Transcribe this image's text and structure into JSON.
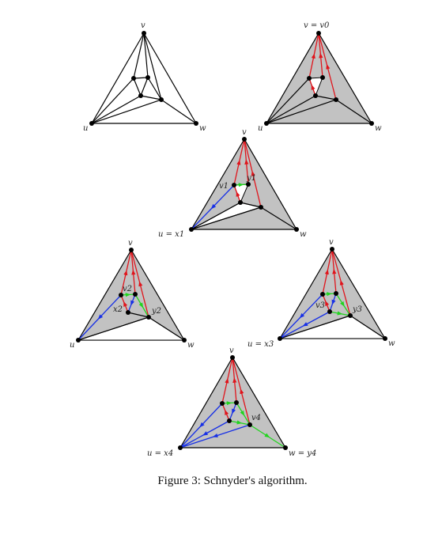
{
  "caption": "Figure 3: Schnyder's algorithm.",
  "colors": {
    "red": "#e0141b",
    "blue": "#1730e6",
    "green": "#22d41f",
    "gray": "#c2c2c2",
    "black": "#000000"
  },
  "panels": [
    {
      "labels": [
        "v",
        "u",
        "w"
      ]
    },
    {
      "labels": [
        "v = v0",
        "u",
        "w"
      ]
    },
    {
      "labels": [
        "v",
        "v1",
        "y1",
        "u = x1",
        "w"
      ]
    },
    {
      "labels": [
        "v",
        "v2",
        "x2",
        "y2",
        "u",
        "w"
      ]
    },
    {
      "labels": [
        "v",
        "v3",
        "y3",
        "u = x3",
        "w"
      ]
    },
    {
      "labels": [
        "v",
        "v4",
        "u = x4",
        "w = y4"
      ]
    }
  ]
}
